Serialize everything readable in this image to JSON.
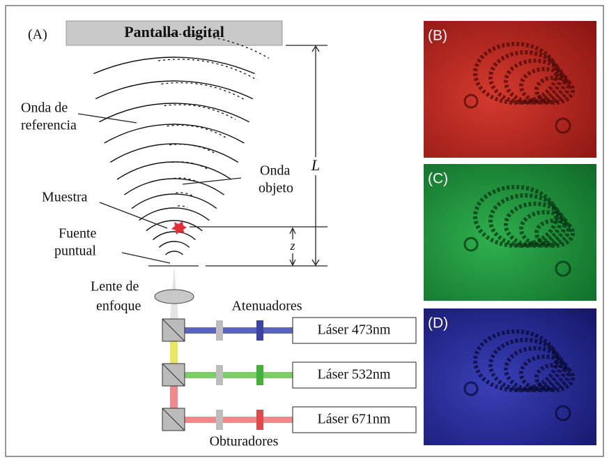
{
  "panel_a": {
    "label": "(A)",
    "screen": "Pantalla digital",
    "reference_wave": [
      "Onda de",
      "referencia"
    ],
    "object_wave": [
      "Onda",
      "objeto"
    ],
    "distance_l": "L",
    "sample": "Muestra",
    "point_source": [
      "Fuente",
      "puntual"
    ],
    "distance_z": "z",
    "lens": [
      "Lente de",
      "enfoque"
    ],
    "attenuators": "Atenuadores",
    "shutters": "Obturadores",
    "lasers": [
      "Láser 473nm",
      "Láser 532nm",
      "Láser 671nm"
    ]
  },
  "panels": [
    "(B)",
    "(C)",
    "(D)"
  ]
}
